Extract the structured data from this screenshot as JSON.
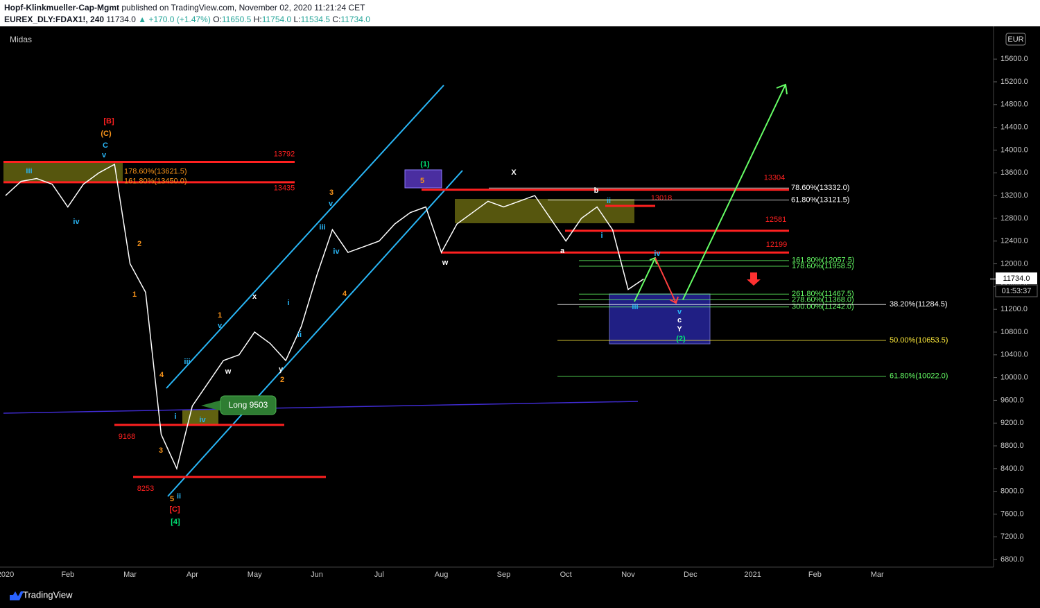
{
  "header": {
    "author": "Hopf-Klinkmueller-Cap-Mgmt",
    "published": "published on TradingView.com, November 02, 2020 11:21:24 CET",
    "symbol": "EUREX_DLY:FDAX1!, 240",
    "last": "11734.0",
    "change": "▲ +170.0 (+1.47%)",
    "o_label": "O:",
    "o": "11650.5",
    "h_label": "H:",
    "h": "11754.0",
    "l_label": "L:",
    "l": "11534.5",
    "c_label": "C:",
    "c": "11734.0"
  },
  "footer": {
    "brand": "TradingView"
  },
  "chart_data": {
    "type": "line",
    "indicator": "Midas",
    "currency": "EUR",
    "color": "#ffffff",
    "categories": [
      "2020",
      null,
      null,
      null,
      "Feb",
      null,
      null,
      null,
      "Mar",
      null,
      null,
      null,
      "Apr",
      null,
      null,
      null,
      "May",
      null,
      null,
      null,
      "Jun",
      null,
      null,
      null,
      "Jul",
      null,
      null,
      null,
      "Aug",
      null,
      null,
      null,
      "Sep",
      null,
      null,
      null,
      "Oct",
      null,
      null,
      null,
      "Nov",
      null,
      null,
      null,
      "Dec",
      null,
      null,
      null,
      "2021",
      null,
      null,
      null,
      "Feb",
      null,
      null,
      null,
      "Mar"
    ],
    "values": [
      13200,
      13450,
      13500,
      13400,
      13000,
      13400,
      13600,
      13750,
      12000,
      11500,
      9000,
      8400,
      9500,
      9900,
      10300,
      10400,
      10800,
      10600,
      10300,
      10900,
      11800,
      12600,
      12200,
      12300,
      12400,
      12700,
      12900,
      13000,
      12200,
      12700,
      12900,
      13100,
      13000,
      13100,
      13200,
      12800,
      12400,
      12800,
      13000,
      12600,
      11550,
      11734,
      null,
      null,
      null,
      null,
      null,
      null,
      null,
      null,
      null,
      null,
      null,
      null,
      null,
      null,
      null
    ],
    "ylim": [
      6680,
      16090
    ],
    "yticks": [
      {
        "value": 6800,
        "label": "6800.0"
      },
      {
        "value": 7200,
        "label": "7200.0"
      },
      {
        "value": 7600,
        "label": "7600.0"
      },
      {
        "value": 8000,
        "label": "8000.0"
      },
      {
        "value": 8400,
        "label": "8400.0"
      },
      {
        "value": 8800,
        "label": "8800.0"
      },
      {
        "value": 9200,
        "label": "9200.0"
      },
      {
        "value": 9600,
        "label": "9600.0"
      },
      {
        "value": 10000,
        "label": "10000.0"
      },
      {
        "value": 10400,
        "label": "10400.0"
      },
      {
        "value": 10800,
        "label": "10800.0"
      },
      {
        "value": 11200,
        "label": "11200.0"
      },
      {
        "value": 11600,
        "label": "11600.0"
      },
      {
        "value": 12000,
        "label": "12000.0"
      },
      {
        "value": 12400,
        "label": "12400.0"
      },
      {
        "value": 12800,
        "label": "12800.0"
      },
      {
        "value": 13200,
        "label": "13200.0"
      },
      {
        "value": 13600,
        "label": "13600.0"
      },
      {
        "value": 14000,
        "label": "14000.0"
      },
      {
        "value": 14400,
        "label": "14400.0"
      },
      {
        "value": 14800,
        "label": "14800.0"
      },
      {
        "value": 15200,
        "label": "15200.0"
      },
      {
        "value": 15600,
        "label": "15600.0"
      }
    ],
    "price_tag": {
      "value": 11734,
      "label": "11734.0"
    },
    "countdown": "01:53:37",
    "level_color": "#ff2020",
    "levels": [
      13792,
      13435,
      9168,
      8253,
      13304,
      13018,
      12581,
      12199
    ],
    "fib_levels": [
      {
        "value": 13621.5,
        "label": "178.60%(13621.5)",
        "color": "#f7931a"
      },
      {
        "value": 13450,
        "label": "161.80%(13450.0)",
        "color": "#f7931a"
      },
      {
        "value": 13332,
        "label": "78.60%(13332.0)",
        "color": "#ffffff"
      },
      {
        "value": 13121.5,
        "label": "61.80%(13121.5)",
        "color": "#ffffff"
      },
      {
        "value": 12057.5,
        "label": "161.80%(12057.5)",
        "color": "#66ff66"
      },
      {
        "value": 11958.5,
        "label": "178.60%(11958.5)",
        "color": "#66ff66"
      },
      {
        "value": 11467.5,
        "label": "261.80%(11467.5)",
        "color": "#66ff66"
      },
      {
        "value": 11368,
        "label": "278.60%(11368.0)",
        "color": "#66ff66"
      },
      {
        "value": 11242,
        "label": "300.00%(11242.0)",
        "color": "#66ff66"
      },
      {
        "value": 11284.5,
        "label": "38.20%(11284.5)",
        "color": "#ffffff"
      },
      {
        "value": 10653.5,
        "label": "50.00%(10653.5)",
        "color": "#ffeb3b"
      },
      {
        "value": 10022,
        "label": "61.80%(10022.0)",
        "color": "#66ff66"
      }
    ],
    "callout": "Long 9503",
    "annotations": [
      {
        "text": "[B]",
        "color": "#ff2020"
      },
      {
        "text": "(C)",
        "color": "#f7931a"
      },
      {
        "text": "C",
        "color": "#29b6f6"
      },
      {
        "text": "v",
        "color": "#29b6f6"
      },
      {
        "text": "iii",
        "color": "#29b6f6"
      },
      {
        "text": "iv",
        "color": "#29b6f6"
      },
      {
        "text": "2",
        "color": "#f7931a"
      },
      {
        "text": "1",
        "color": "#f7931a"
      },
      {
        "text": "4",
        "color": "#f7931a"
      },
      {
        "text": "iii",
        "color": "#29b6f6"
      },
      {
        "text": "i",
        "color": "#29b6f6"
      },
      {
        "text": "iv",
        "color": "#29b6f6"
      },
      {
        "text": "3",
        "color": "#f7931a"
      },
      {
        "text": "5",
        "color": "#f7931a"
      },
      {
        "text": "ii",
        "color": "#29b6f6"
      },
      {
        "text": "[C]",
        "color": "#ff2020"
      },
      {
        "text": "[4]",
        "color": "#00e676"
      },
      {
        "text": "1",
        "color": "#f7931a"
      },
      {
        "text": "v",
        "color": "#29b6f6"
      },
      {
        "text": "w",
        "color": "#ffffff"
      },
      {
        "text": "x",
        "color": "#ffffff"
      },
      {
        "text": "y",
        "color": "#ffffff"
      },
      {
        "text": "2",
        "color": "#f7931a"
      },
      {
        "text": "i",
        "color": "#29b6f6"
      },
      {
        "text": "ii",
        "color": "#29b6f6"
      },
      {
        "text": "3",
        "color": "#f7931a"
      },
      {
        "text": "v",
        "color": "#29b6f6"
      },
      {
        "text": "iii",
        "color": "#29b6f6"
      },
      {
        "text": "iv",
        "color": "#29b6f6"
      },
      {
        "text": "4",
        "color": "#f7931a"
      },
      {
        "text": "(1)",
        "color": "#00e676"
      },
      {
        "text": "5",
        "color": "#f7931a"
      },
      {
        "text": "w",
        "color": "#ffffff"
      },
      {
        "text": "X",
        "color": "#ffffff"
      },
      {
        "text": "a",
        "color": "#ffffff"
      },
      {
        "text": "b",
        "color": "#ffffff"
      },
      {
        "text": "ii",
        "color": "#29b6f6"
      },
      {
        "text": "i",
        "color": "#29b6f6"
      },
      {
        "text": "iii",
        "color": "#29b6f6"
      },
      {
        "text": "iv",
        "color": "#29b6f6"
      },
      {
        "text": "v",
        "color": "#29b6f6"
      },
      {
        "text": "c",
        "color": "#ffffff"
      },
      {
        "text": "Y",
        "color": "#ffffff"
      },
      {
        "text": "(2)",
        "color": "#00e676"
      }
    ]
  }
}
